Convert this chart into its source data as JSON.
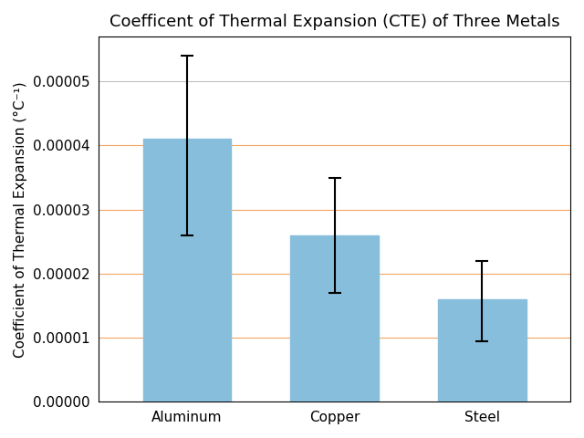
{
  "categories": [
    "Aluminum",
    "Copper",
    "Steel"
  ],
  "values": [
    4.1e-05,
    2.6e-05,
    1.6e-05
  ],
  "errors_low": [
    1.5e-05,
    9e-06,
    6.5e-06
  ],
  "errors_high": [
    1.3e-05,
    9e-06,
    6e-06
  ],
  "bar_color": "#87BEDC",
  "bar_edgecolor": "#87BEDC",
  "error_color": "black",
  "title": "Coefficent of Thermal Expansion (CTE) of Three Metals",
  "ylabel": "Coefficient of Thermal Expansion (°C⁻¹)",
  "ylim": [
    0,
    5.7e-05
  ],
  "yticks": [
    0.0,
    1e-05,
    2e-05,
    3e-05,
    4e-05,
    5e-05
  ],
  "gray_grid_lines": [
    5e-05
  ],
  "orange_grid_lines": [
    1e-05,
    2e-05,
    3e-05,
    4e-05
  ],
  "grid_color": "#C0C0C0",
  "orange_color": "#F4A460",
  "title_fontsize": 13,
  "label_fontsize": 11,
  "tick_fontsize": 11,
  "bar_width": 0.6,
  "figsize": [
    6.4,
    4.8
  ],
  "dpi": 100
}
